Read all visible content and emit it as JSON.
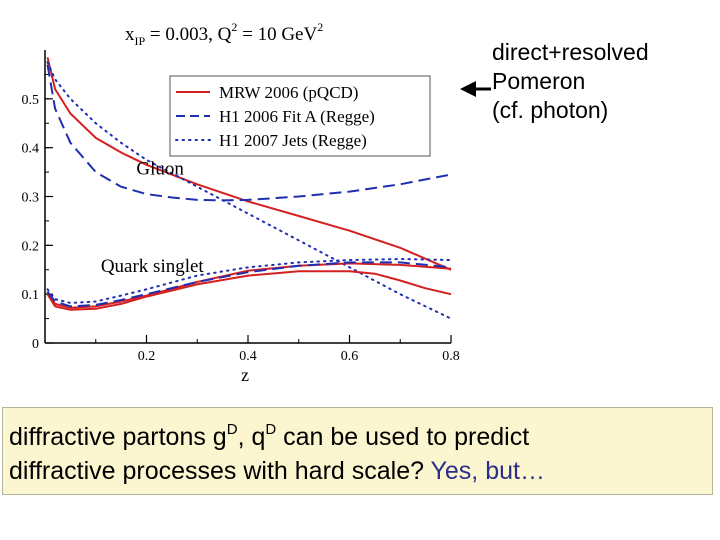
{
  "chart_data": {
    "type": "line",
    "title": "x_IP = 0.003,  Q^2 = 10 GeV^2",
    "title_parts": {
      "x": "x",
      "x_sub": "IP",
      "x_val": " = 0.003,  Q",
      "q_sup": "2",
      "q_val": " = 10 GeV",
      "gev_sup": "2"
    },
    "xlabel": "z",
    "ylabel": "",
    "xlim": [
      0.0,
      0.8
    ],
    "ylim": [
      0.0,
      0.6
    ],
    "x_ticks": [
      0.2,
      0.4,
      0.6,
      0.8
    ],
    "x_tick_labels": [
      "0.2",
      "0.4",
      "0.6",
      "0.8"
    ],
    "y_ticks": [
      0.0,
      0.1,
      0.2,
      0.3,
      0.4,
      0.5
    ],
    "y_tick_labels": [
      "0",
      "0.1",
      "0.2",
      "0.3",
      "0.4",
      "0.5"
    ],
    "grid": false,
    "legend_placement": "top-right",
    "legend": [
      {
        "label": "MRW 2006 (pQCD)",
        "color": "#d42020",
        "style": "solid"
      },
      {
        "label": "H1 2006 Fit A (Regge)",
        "color": "#1f2fb0",
        "style": "dashed"
      },
      {
        "label": "H1 2007 Jets (Regge)",
        "color": "#1f2fb0",
        "style": "dotted"
      }
    ],
    "annotations": [
      {
        "text": "Gluon",
        "x": 0.18,
        "y": 0.345
      },
      {
        "text": "Quark singlet",
        "x": 0.11,
        "y": 0.145
      }
    ],
    "series": [
      {
        "name": "MRW 2006 (pQCD)",
        "group": "Gluon",
        "color": "#d42020",
        "style": "solid",
        "x": [
          0.005,
          0.02,
          0.05,
          0.1,
          0.15,
          0.2,
          0.3,
          0.4,
          0.5,
          0.6,
          0.7,
          0.8
        ],
        "y": [
          0.585,
          0.52,
          0.47,
          0.42,
          0.39,
          0.365,
          0.325,
          0.29,
          0.26,
          0.23,
          0.195,
          0.15
        ]
      },
      {
        "name": "H1 2006 Fit A (Regge)",
        "group": "Gluon",
        "color": "#1f2fb0",
        "style": "dashed",
        "x": [
          0.005,
          0.02,
          0.05,
          0.1,
          0.15,
          0.2,
          0.25,
          0.3,
          0.35,
          0.4,
          0.5,
          0.6,
          0.7,
          0.8
        ],
        "y": [
          0.57,
          0.48,
          0.41,
          0.35,
          0.32,
          0.305,
          0.298,
          0.293,
          0.292,
          0.293,
          0.3,
          0.31,
          0.325,
          0.345
        ]
      },
      {
        "name": "H1 2007 Jets (Regge)",
        "group": "Gluon",
        "color": "#1f2fb0",
        "style": "dotted",
        "x": [
          0.005,
          0.02,
          0.05,
          0.1,
          0.15,
          0.2,
          0.3,
          0.4,
          0.5,
          0.6,
          0.7,
          0.8
        ],
        "y": [
          0.575,
          0.54,
          0.5,
          0.45,
          0.41,
          0.375,
          0.32,
          0.265,
          0.21,
          0.155,
          0.1,
          0.05
        ]
      },
      {
        "name": "MRW 2006 (pQCD)",
        "group": "Quark singlet",
        "color": "#d42020",
        "style": "solid",
        "x": [
          0.005,
          0.02,
          0.05,
          0.1,
          0.15,
          0.2,
          0.3,
          0.4,
          0.5,
          0.6,
          0.65,
          0.7,
          0.75,
          0.8
        ],
        "y": [
          0.1,
          0.075,
          0.068,
          0.07,
          0.08,
          0.095,
          0.12,
          0.138,
          0.147,
          0.147,
          0.142,
          0.128,
          0.112,
          0.1
        ]
      },
      {
        "name": "MRW 2006 (pQCD)",
        "group": "Quark singlet",
        "color": "#d42020",
        "style": "solid",
        "x": [
          0.005,
          0.02,
          0.05,
          0.1,
          0.15,
          0.2,
          0.3,
          0.4,
          0.5,
          0.6,
          0.7,
          0.8
        ],
        "y": [
          0.105,
          0.08,
          0.072,
          0.075,
          0.085,
          0.097,
          0.125,
          0.148,
          0.158,
          0.163,
          0.16,
          0.152
        ]
      },
      {
        "name": "H1 2006 Fit A (Regge)",
        "group": "Quark singlet",
        "color": "#1f2fb0",
        "style": "dashed",
        "x": [
          0.005,
          0.02,
          0.05,
          0.1,
          0.15,
          0.2,
          0.3,
          0.4,
          0.5,
          0.6,
          0.7,
          0.8
        ],
        "y": [
          0.105,
          0.085,
          0.075,
          0.078,
          0.088,
          0.1,
          0.125,
          0.145,
          0.158,
          0.165,
          0.165,
          0.155
        ]
      },
      {
        "name": "H1 2007 Jets (Regge)",
        "group": "Quark singlet",
        "color": "#1f2fb0",
        "style": "dotted",
        "x": [
          0.005,
          0.02,
          0.05,
          0.1,
          0.15,
          0.2,
          0.3,
          0.4,
          0.5,
          0.6,
          0.7,
          0.8
        ],
        "y": [
          0.11,
          0.09,
          0.082,
          0.085,
          0.097,
          0.11,
          0.138,
          0.155,
          0.165,
          0.17,
          0.172,
          0.17
        ]
      }
    ]
  },
  "note": {
    "line1": "direct+resolved",
    "line2": "Pomeron",
    "line3": "(cf. photon)"
  },
  "bottom": {
    "part1": "diffractive partons  g",
    "sup1": "D",
    "part2": ", q",
    "sup2": "D",
    "part3": "  can be used to predict",
    "line2": "diffractive processes with hard scale? ",
    "accent": "Yes, but…"
  },
  "colors": {
    "arrow": "#000000",
    "accent": "#2b2f8c",
    "box_bg": "#fbf6d0"
  }
}
